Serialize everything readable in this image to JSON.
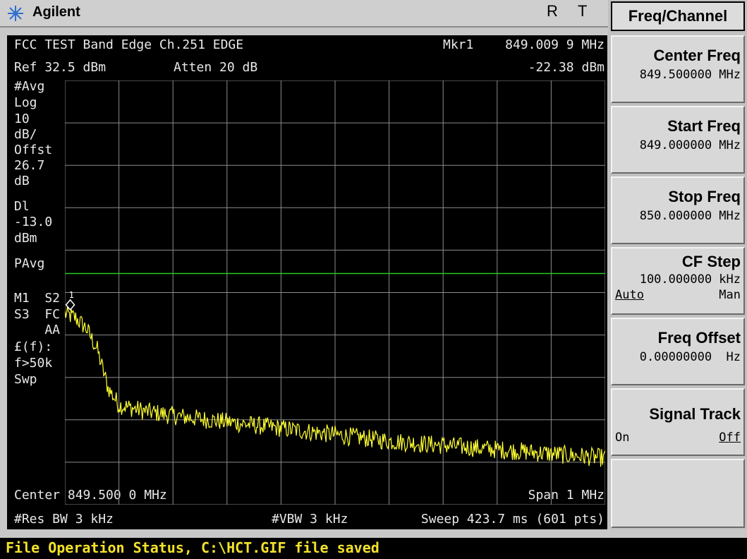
{
  "topbar": {
    "brand": "Agilent",
    "indicator_r": "R",
    "indicator_t": "T"
  },
  "header": {
    "title": "FCC TEST Band Edge Ch.251 EDGE",
    "marker_label": "Mkr1",
    "marker_freq": "849.009 9 MHz",
    "ref_level": "Ref 32.5 dBm",
    "atten": "Atten 20 dB",
    "marker_amp": "-22.38 dBm"
  },
  "side_annotations": [
    "#Avg",
    "Log",
    "10",
    "dB/",
    "Offst",
    "26.7",
    "dB",
    "Dl",
    "-13.0",
    "dBm",
    "PAvg",
    "M1  S2",
    "S3  FC",
    "    AA",
    "£(f):",
    "f>50k",
    "Swp"
  ],
  "footer": {
    "center": "Center 849.500 0 MHz",
    "span": "Span 1 MHz",
    "res_bw": "#Res BW 3 kHz",
    "vbw": "#VBW 3 kHz",
    "sweep": "Sweep 423.7 ms (601 pts)"
  },
  "softkeys": {
    "menu_title": "Freq/Channel",
    "center_freq": {
      "label": "Center Freq",
      "value": "849.500000 MHz"
    },
    "start_freq": {
      "label": "Start Freq",
      "value": "849.000000 MHz"
    },
    "stop_freq": {
      "label": "Stop Freq",
      "value": "850.000000 MHz"
    },
    "cf_step": {
      "label": "CF Step",
      "value": "100.000000 kHz",
      "auto": "Auto",
      "man": "Man"
    },
    "freq_offset": {
      "label": "Freq Offset",
      "value": "0.00000000  Hz"
    },
    "signal_track": {
      "label": "Signal Track",
      "on": "On",
      "off": "Off"
    }
  },
  "status": {
    "text": "File Operation Status, C:\\HCT.GIF file saved"
  },
  "colors": {
    "trace": "#ffff33",
    "display_line": "#22cc22",
    "grid": "#8c8c8c",
    "status_text": "#f2e22a"
  },
  "chart_data": {
    "type": "line",
    "x_start_mhz": 849.0,
    "x_stop_mhz": 850.0,
    "points": 601,
    "ref_level_dbm": 32.5,
    "db_per_div": 10,
    "ylim": [
      -67.5,
      32.5
    ],
    "display_line_dbm": -13.0,
    "marker": {
      "label": "1",
      "x_mhz": 849.0099,
      "y_dbm": -22.38
    },
    "trace_envelope": [
      [
        849.0,
        -22.5
      ],
      [
        849.02,
        -23.5
      ],
      [
        849.04,
        -26.0
      ],
      [
        849.06,
        -31.0
      ],
      [
        849.08,
        -40.0
      ],
      [
        849.1,
        -44.0
      ],
      [
        849.15,
        -45.5
      ],
      [
        849.2,
        -46.5
      ],
      [
        849.3,
        -48.0
      ],
      [
        849.4,
        -49.5
      ],
      [
        849.5,
        -51.0
      ],
      [
        849.6,
        -52.5
      ],
      [
        849.7,
        -53.5
      ],
      [
        849.8,
        -54.5
      ],
      [
        849.9,
        -55.5
      ],
      [
        850.0,
        -56.5
      ]
    ],
    "noise_db": 2.2,
    "grid": true
  }
}
